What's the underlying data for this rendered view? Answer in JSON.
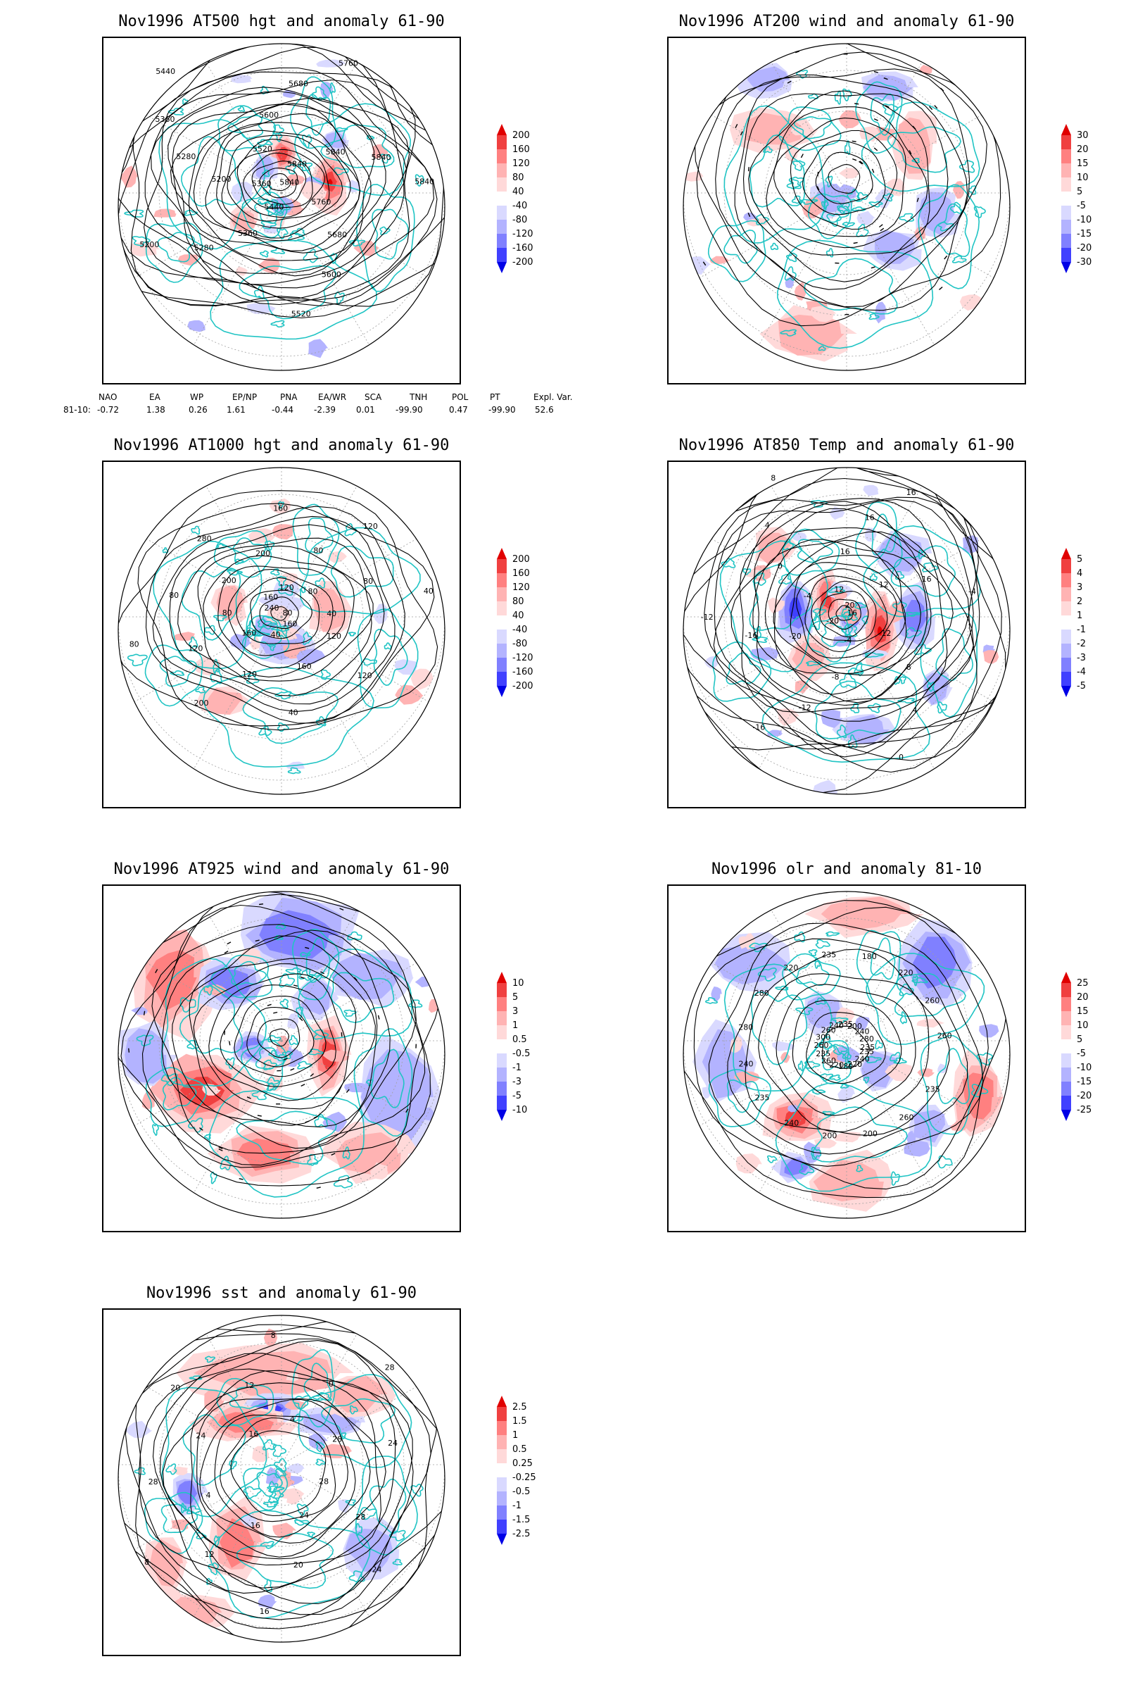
{
  "panels": [
    {
      "id": "p500",
      "title": "Nov1996 AT500 hgt and anomaly 61-90",
      "scale": [
        "200",
        "160",
        "120",
        "80",
        "40",
        "-40",
        "-80",
        "-120",
        "-160",
        "-200"
      ],
      "contour_labels": [
        "5840",
        "5760",
        "5680",
        "5600",
        "5520",
        "5440",
        "5360",
        "5280",
        "5200",
        "5360",
        "5200",
        "5280",
        "5360",
        "5440",
        "5520",
        "5600",
        "5680",
        "5760",
        "5840",
        "5840",
        "5840",
        "5840"
      ]
    },
    {
      "id": "p200",
      "title": "Nov1996 AT200 wind and anomaly 61-90",
      "scale": [
        "30",
        "20",
        "15",
        "10",
        "5",
        "-5",
        "-10",
        "-15",
        "-20",
        "-30"
      ],
      "contour_labels": []
    },
    {
      "id": "p1000",
      "title": "Nov1996 AT1000 hgt and anomaly 61-90",
      "scale": [
        "200",
        "160",
        "120",
        "80",
        "40",
        "-40",
        "-80",
        "-120",
        "-160",
        "-200"
      ],
      "contour_labels": [
        "80",
        "120",
        "120",
        "160",
        "160",
        "40",
        "40",
        "120",
        "200",
        "160",
        "120",
        "80",
        "80",
        "80",
        "240",
        "200",
        "280",
        "160",
        "200",
        "160",
        "120",
        "80",
        "120",
        "80",
        "80",
        "40",
        "40"
      ]
    },
    {
      "id": "p850",
      "title": "Nov1996 AT850 Temp and anomaly 61-90",
      "scale": [
        "5",
        "4",
        "3",
        "2",
        "1",
        "-1",
        "-2",
        "-3",
        "-4",
        "-5"
      ],
      "contour_labels": [
        "16",
        "12",
        "8",
        "4",
        "0",
        "-4",
        "-8",
        "-12",
        "-16",
        "-20",
        "-20",
        "-16",
        "-12",
        "-8",
        "-4",
        "0",
        "4",
        "8",
        "12",
        "16",
        "16",
        "16",
        "20",
        "12",
        "16",
        "-4",
        "-8"
      ]
    },
    {
      "id": "p925",
      "title": "Nov1996 AT925 wind and anomaly 61-90",
      "scale": [
        "10",
        "5",
        "3",
        "1",
        "0.5",
        "-0.5",
        "-1",
        "-3",
        "-5",
        "-10"
      ],
      "contour_labels": []
    },
    {
      "id": "polr",
      "title": "Nov1996 olr and anomaly 81-10",
      "scale": [
        "25",
        "20",
        "15",
        "10",
        "5",
        "-5",
        "-10",
        "-15",
        "-20",
        "-25"
      ],
      "contour_labels": [
        "235",
        "235",
        "240",
        "260",
        "220",
        "200",
        "180",
        "200",
        "220",
        "240",
        "260",
        "235",
        "235",
        "240",
        "260",
        "280",
        "300",
        "280",
        "260",
        "220",
        "240",
        "235",
        "235",
        "180",
        "200",
        "220",
        "240",
        "260",
        "280",
        "260",
        "235"
      ]
    },
    {
      "id": "psst",
      "title": "Nov1996 sst and anomaly 61-90",
      "scale": [
        "2.5",
        "1.5",
        "1",
        "0.5",
        "0.25",
        "-0.25",
        "-0.5",
        "-1",
        "-1.5",
        "-2.5"
      ],
      "contour_labels": [
        "28",
        "28",
        "24",
        "24",
        "20",
        "16",
        "16",
        "12",
        "8",
        "4",
        "28",
        "28",
        "24",
        "20",
        "16",
        "12",
        "8",
        "4",
        "0",
        "28",
        "28",
        "24",
        "20"
      ]
    }
  ],
  "teleconnections": {
    "headers": [
      "NAO",
      "EA",
      "WP",
      "EP/NP",
      "PNA",
      "EA/WR",
      "SCA",
      "TNH",
      "POL",
      "PT",
      "Expl. Var."
    ],
    "row_label": "81-10:",
    "values": [
      "-0.72",
      "1.38",
      "0.26",
      "1.61",
      "-0.44",
      "-2.39",
      "0.01",
      "-99.90",
      "0.47",
      "-99.90",
      "52.6"
    ]
  },
  "colors": {
    "pos": [
      "#ffd9d9",
      "#ffb3b3",
      "#ff8080",
      "#f04040",
      "#e00000"
    ],
    "neg": [
      "#d9d9ff",
      "#b3b3ff",
      "#8080ff",
      "#4040ff",
      "#0000e6"
    ],
    "coast": "#20c4c4",
    "contour": "#000000",
    "grid": "#a0a0a0"
  }
}
